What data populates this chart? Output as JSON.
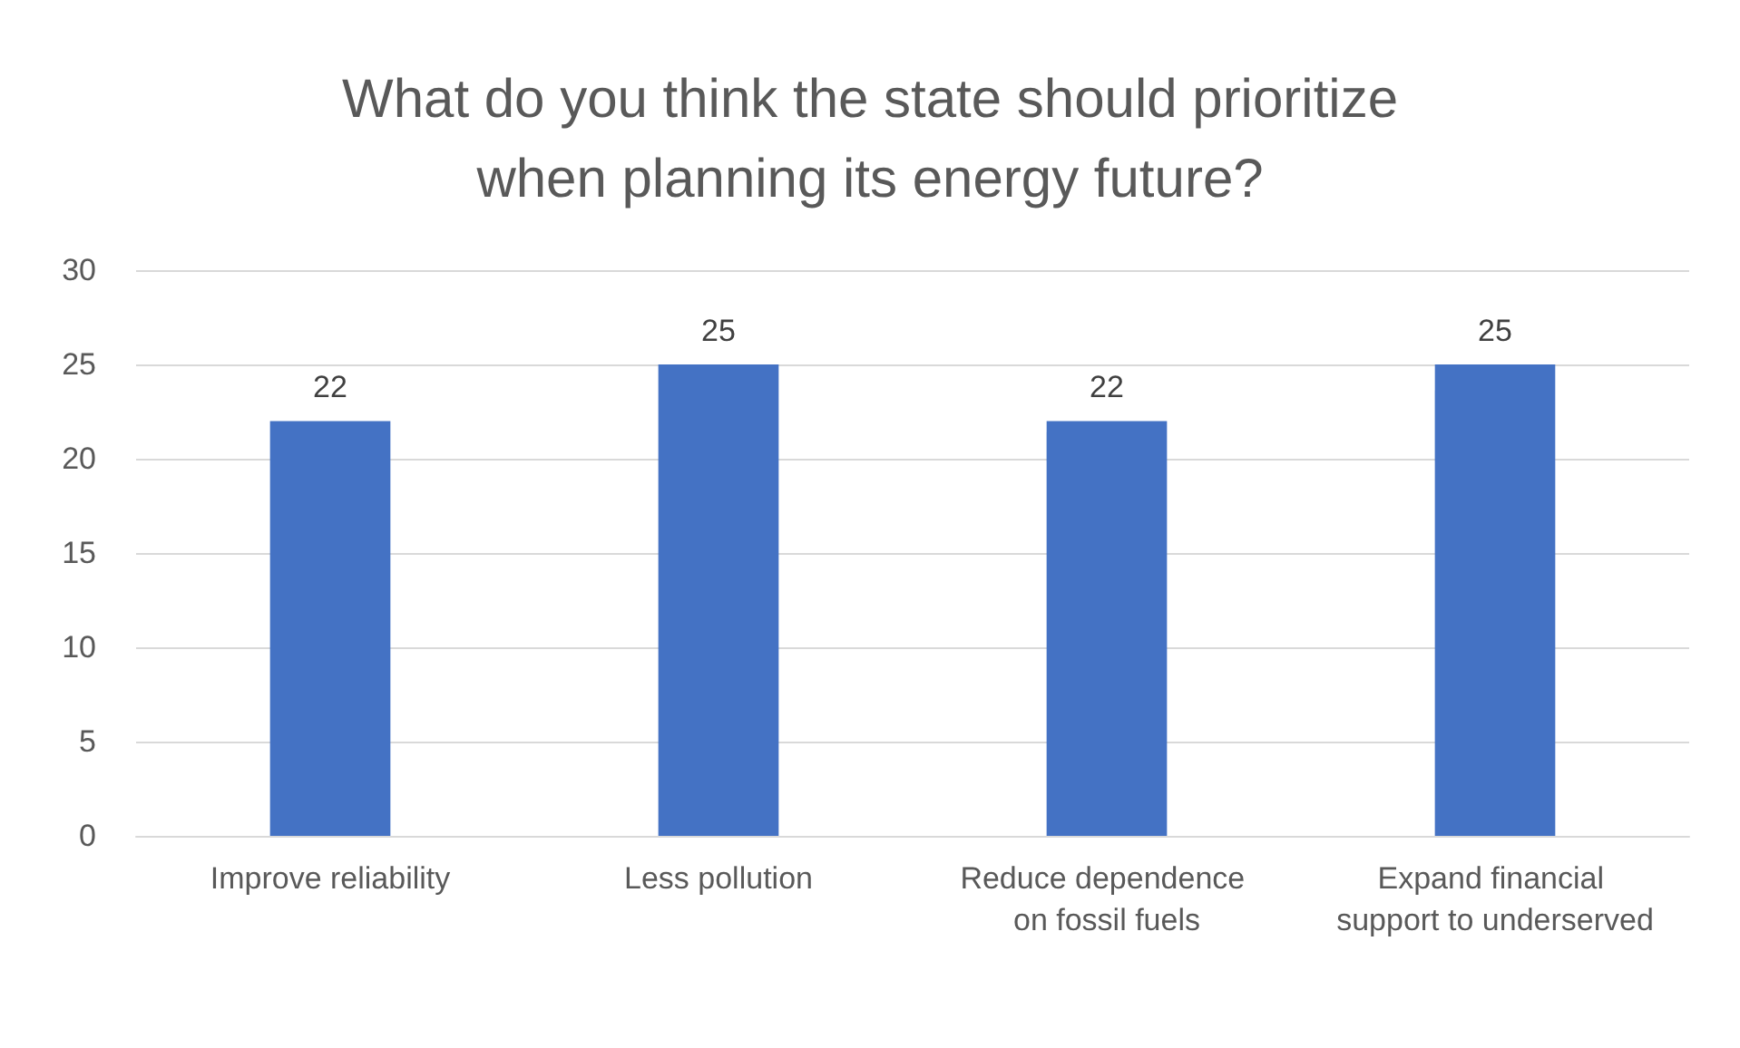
{
  "chart_data": {
    "type": "bar",
    "title": "What do you think the state should prioritize\nwhen planning its energy future?",
    "categories": [
      "Improve reliability",
      "Less pollution",
      "Reduce dependence on fossil fuels",
      "Expand financial support to underserved"
    ],
    "values": [
      22,
      25,
      22,
      25
    ],
    "color": "#4472c4",
    "ylim": [
      0,
      30
    ],
    "yticks": [
      0,
      5,
      10,
      15,
      20,
      25,
      30
    ],
    "grid": "y",
    "data_labels": true
  }
}
